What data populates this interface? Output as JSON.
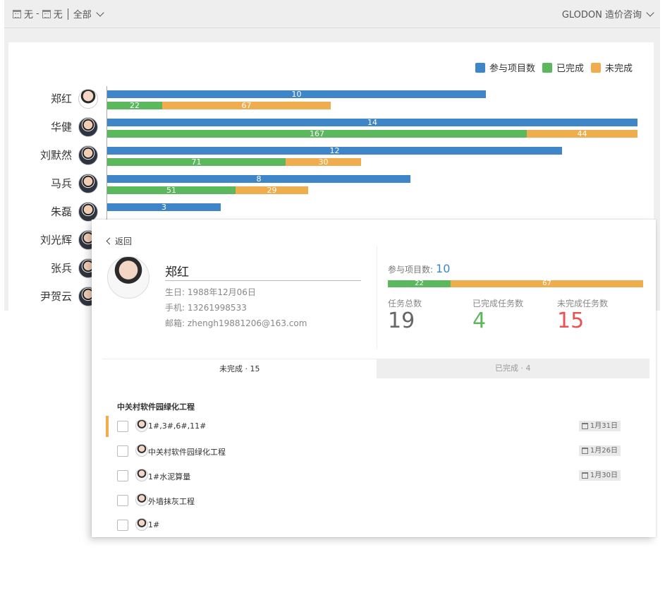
{
  "topbar": {
    "start_date": "无",
    "dash": "-",
    "end_date": "无",
    "filter": "全部",
    "org": "GLODON 造价咨询"
  },
  "legend": [
    {
      "label": "参与项目数",
      "color": "#3e86c8"
    },
    {
      "label": "已完成",
      "color": "#5cb85c"
    },
    {
      "label": "未完成",
      "color": "#f0ad4e"
    }
  ],
  "chart_data": {
    "type": "bar",
    "orientation": "horizontal",
    "categories": [
      "郑红",
      "华健",
      "刘默然",
      "马兵",
      "朱磊",
      "刘光辉",
      "张兵",
      "尹贺云"
    ],
    "series": [
      {
        "name": "参与项目数",
        "values": [
          10,
          14,
          12,
          8,
          3,
          null,
          null,
          null
        ]
      },
      {
        "name": "已完成",
        "values": [
          22,
          167,
          71,
          51,
          null,
          null,
          null,
          null
        ]
      },
      {
        "name": "未完成",
        "values": [
          67,
          44,
          30,
          29,
          null,
          null,
          null,
          null
        ]
      }
    ]
  },
  "detail": {
    "back": "返回",
    "name": "郑红",
    "birthday": "生日: 1988年12月06日",
    "phone": "手机: 13261998533",
    "email": "邮箱: zhengh19881206@163.com",
    "project_label": "参与项目数:",
    "project_count": "10",
    "completed": 22,
    "uncompleted": 67,
    "stats": [
      {
        "label": "任务总数",
        "value": "19",
        "color": "#666666"
      },
      {
        "label": "已完成任务数",
        "value": "4",
        "color": "#5cb85c"
      },
      {
        "label": "未完成任务数",
        "value": "15",
        "color": "#e85454"
      }
    ],
    "tabs": [
      "未完成 · 15",
      "已完成 · 4"
    ],
    "group_title": "中关村软件园绿化工程",
    "tasks": [
      {
        "name": "1#,3#,6#,11#",
        "date": "1月31日"
      },
      {
        "name": "中关村软件园绿化工程",
        "date": "1月26日"
      },
      {
        "name": "1#水泥算量",
        "date": "1月30日"
      },
      {
        "name": "外墙抹灰工程",
        "date": ""
      },
      {
        "name": "1#",
        "date": ""
      }
    ]
  }
}
